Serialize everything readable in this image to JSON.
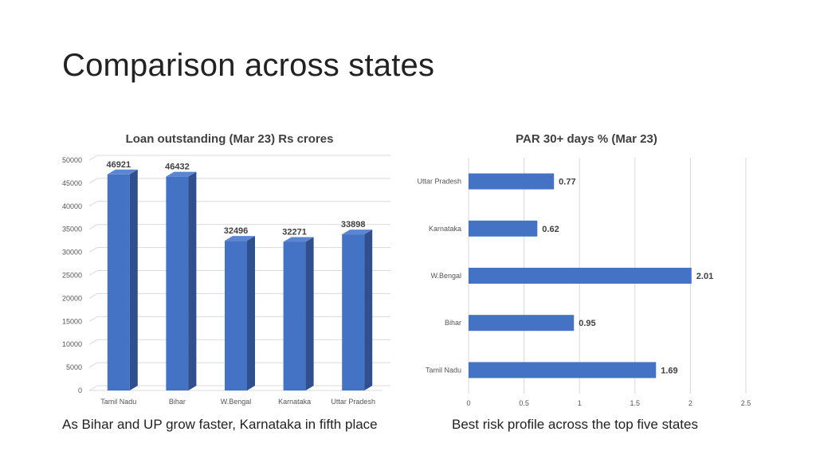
{
  "slide": {
    "title": "Comparison across states",
    "caption_left": "As Bihar and UP grow faster, Karnataka in fifth place",
    "caption_right": "Best risk profile across the top five states"
  },
  "colors": {
    "bar_front": "#4472C4",
    "bar_side": "#2F4F8F",
    "bar_top": "#5B85D0",
    "grid": "#D9D9D9"
  },
  "chart_data": [
    {
      "type": "bar",
      "title": "Loan outstanding (Mar 23) Rs crores",
      "categories": [
        "Tamil Nadu",
        "Bihar",
        "W.Bengal",
        "Karnataka",
        "Uttar Pradesh"
      ],
      "values": [
        46921,
        46432,
        32496,
        32271,
        33898
      ],
      "value_labels": [
        "46921",
        "46432",
        "32496",
        "32271",
        "33898"
      ],
      "ylim": [
        0,
        50000
      ],
      "y_ticks": [
        "0",
        "5000",
        "10000",
        "15000",
        "20000",
        "25000",
        "30000",
        "35000",
        "40000",
        "45000",
        "50000"
      ],
      "grid": true,
      "style": "3d-column"
    },
    {
      "type": "bar",
      "orientation": "horizontal",
      "title": "PAR 30+ days  % (Mar 23)",
      "categories": [
        "Uttar Pradesh",
        "Karnataka",
        "W.Bengal",
        "Bihar",
        "Tamil Nadu"
      ],
      "values": [
        0.77,
        0.62,
        2.01,
        0.95,
        1.69
      ],
      "value_labels": [
        "0.77",
        "0.62",
        "2.01",
        "0.95",
        "1.69"
      ],
      "xlim": [
        0,
        2.5
      ],
      "x_ticks": [
        "0",
        "0.5",
        "1",
        "1.5",
        "2",
        "2.5"
      ],
      "grid": true
    }
  ]
}
